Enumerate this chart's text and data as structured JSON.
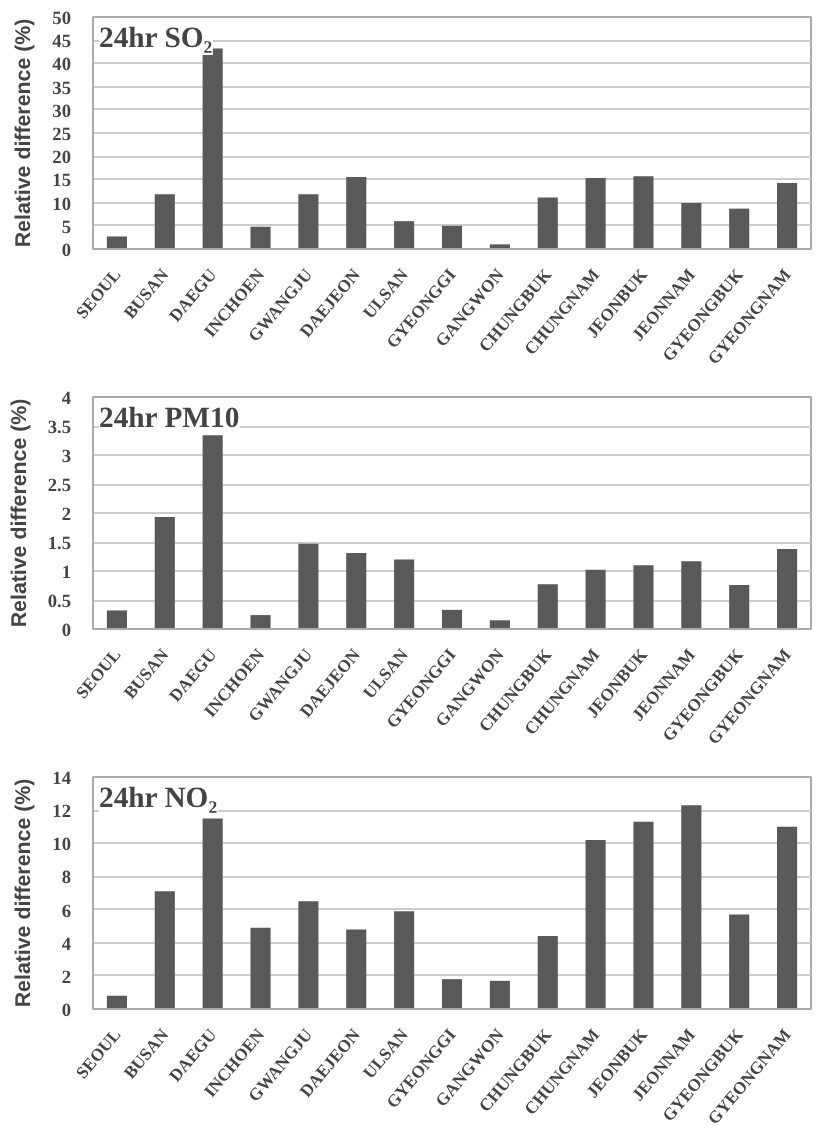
{
  "chart_data": [
    {
      "type": "bar",
      "title": "24hr SO₂",
      "ylabel": "Relative difference (%)",
      "categories": [
        "SEOUL",
        "BUSAN",
        "DAEGU",
        "INCHOEN",
        "GWANGJU",
        "DAEJEON",
        "ULSAN",
        "GYEONGGI",
        "GANGWON",
        "CHUNGBUK",
        "CHUNGNAM",
        "JEONBUK",
        "JEONNAM",
        "GYEONGBUK",
        "GYEONGNAM"
      ],
      "values": [
        2.7,
        11.8,
        43.2,
        4.8,
        11.8,
        15.5,
        6,
        5,
        1,
        11.1,
        15.3,
        15.7,
        9.9,
        8.7,
        14.2
      ],
      "color": "#595959",
      "ylim": [
        0,
        50
      ],
      "yticks": [
        0,
        5,
        10,
        15,
        20,
        25,
        30,
        35,
        40,
        45,
        50
      ],
      "grid": "y"
    },
    {
      "type": "bar",
      "title": "24hr PM10",
      "ylabel": "Relative difference (%)",
      "categories": [
        "SEOUL",
        "BUSAN",
        "DAEGU",
        "INCHOEN",
        "GWANGJU",
        "DAEJEON",
        "ULSAN",
        "GYEONGGI",
        "GANGWON",
        "CHUNGBUK",
        "CHUNGNAM",
        "JEONBUK",
        "JEONNAM",
        "GYEONGBUK",
        "GYEONGNAM"
      ],
      "values": [
        0.32,
        1.93,
        3.34,
        0.24,
        1.47,
        1.31,
        1.2,
        0.33,
        0.15,
        0.77,
        1.02,
        1.1,
        1.17,
        0.76,
        1.38
      ],
      "color": "#595959",
      "ylim": [
        0,
        4
      ],
      "yticks": [
        0,
        0.5,
        1,
        1.5,
        2,
        2.5,
        3,
        3.5,
        4
      ],
      "grid": "y"
    },
    {
      "type": "bar",
      "title": "24hr NO₂",
      "ylabel": "Relative difference (%)",
      "categories": [
        "SEOUL",
        "BUSAN",
        "DAEGU",
        "INCHOEN",
        "GWANGJU",
        "DAEJEON",
        "ULSAN",
        "GYEONGGI",
        "GANGWON",
        "CHUNGBUK",
        "CHUNGNAM",
        "JEONBUK",
        "JEONNAM",
        "GYEONGBUK",
        "GYEONGNAM"
      ],
      "values": [
        0.8,
        7.1,
        11.5,
        4.9,
        6.5,
        4.8,
        5.9,
        1.8,
        1.7,
        4.4,
        10.2,
        11.3,
        12.3,
        5.7,
        11
      ],
      "color": "#595959",
      "ylim": [
        0,
        14
      ],
      "yticks": [
        0,
        2,
        4,
        6,
        8,
        10,
        12,
        14
      ],
      "grid": "y"
    }
  ]
}
